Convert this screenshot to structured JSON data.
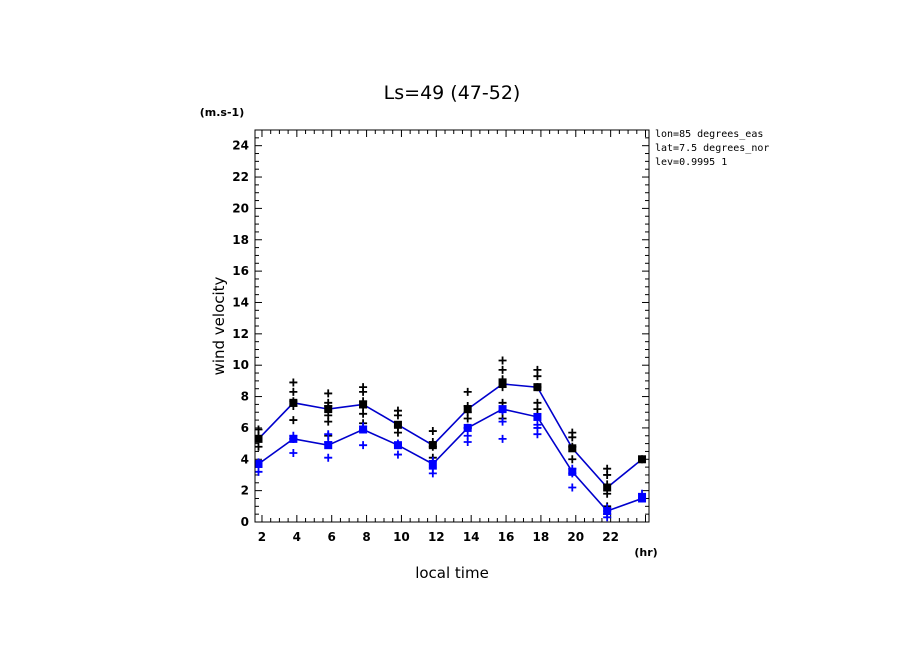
{
  "chart_data": {
    "type": "line",
    "title": "Ls=49 (47-52)",
    "xlabel": "local time",
    "ylabel": "wind velocity",
    "y_unit": "(m.s-1)",
    "x_unit": "(hr)",
    "annotations": [
      "lon=85 degrees_eas",
      "lat=7.5 degrees_nor",
      "lev=0.9995 1"
    ],
    "xlim": [
      1.6,
      24.2
    ],
    "ylim": [
      0,
      25
    ],
    "x_ticks": [
      2,
      4,
      6,
      8,
      10,
      12,
      14,
      16,
      18,
      20,
      22
    ],
    "y_ticks": [
      0,
      2,
      4,
      6,
      8,
      10,
      12,
      14,
      16,
      18,
      20,
      22,
      24
    ],
    "grid": false,
    "x": [
      1.8,
      3.8,
      5.8,
      7.8,
      9.8,
      11.8,
      13.8,
      15.8,
      17.8,
      19.8,
      21.8,
      23.8
    ],
    "series": [
      {
        "color": "#0000cc",
        "marker_color": "#000000",
        "values": [
          5.3,
          7.6,
          7.2,
          7.5,
          6.2,
          4.9,
          7.2,
          8.8,
          8.6,
          4.7,
          2.2,
          4.0
        ],
        "scatter": [
          [
            5.9,
            5.5,
            4.8
          ],
          [
            8.9,
            8.3,
            7.7,
            7.4,
            6.5,
            5.3
          ],
          [
            8.2,
            7.6,
            7.4,
            6.8,
            6.4,
            5.5
          ],
          [
            8.6,
            8.3,
            7.7,
            7.3,
            6.9,
            6.3
          ],
          [
            7.1,
            6.8,
            6.1,
            5.7
          ],
          [
            5.8,
            5.1,
            4.8,
            4.1
          ],
          [
            8.3,
            7.4,
            7.0,
            6.6,
            6.0
          ],
          [
            10.3,
            9.7,
            9.1,
            8.6,
            7.6,
            7.1,
            6.6
          ],
          [
            9.7,
            9.3,
            8.6,
            7.6,
            7.2
          ],
          [
            5.7,
            5.4,
            4.8,
            4.0
          ],
          [
            3.4,
            3.0,
            2.4,
            1.8,
            1.0,
            0.5
          ],
          [
            4.0
          ]
        ]
      },
      {
        "color": "#0000cc",
        "marker_color": "#0000ff",
        "values": [
          3.7,
          5.3,
          4.9,
          5.9,
          4.9,
          3.7,
          6.0,
          7.2,
          6.7,
          3.2,
          0.7,
          1.5
        ],
        "scatter": [
          [
            3.8,
            3.2
          ],
          [
            5.5,
            5.3,
            4.4
          ],
          [
            5.6,
            5.1,
            4.1
          ],
          [
            6.1,
            5.9,
            4.9
          ],
          [
            5.0,
            4.9,
            4.3
          ],
          [
            3.9,
            3.4,
            3.1
          ],
          [
            6.0,
            5.5,
            5.1
          ],
          [
            7.1,
            6.4,
            5.3
          ],
          [
            6.2,
            6.0,
            5.6
          ],
          [
            3.4,
            3.1,
            2.2
          ],
          [
            0.9,
            0.7,
            0.3
          ],
          [
            1.8,
            1.5
          ]
        ]
      }
    ]
  }
}
